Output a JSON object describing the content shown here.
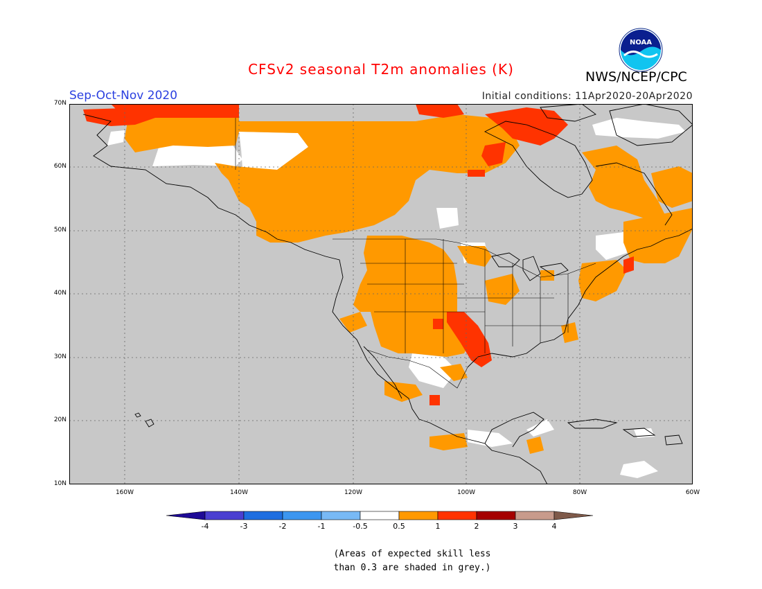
{
  "title": "CFSv2 seasonal T2m anomalies (K)",
  "agency": "NWS/NCEP/CPC",
  "logo_text": "NOAA",
  "season": "Sep-Oct-Nov 2020",
  "initial_conditions": "Initial conditions: 11Apr2020-20Apr2020",
  "latitude_labels": [
    "70N",
    "60N",
    "50N",
    "40N",
    "30N",
    "20N",
    "10N"
  ],
  "longitude_labels": [
    "160W",
    "140W",
    "120W",
    "100W",
    "80W",
    "60W"
  ],
  "colorbar": {
    "labels": [
      "-4",
      "-3",
      "-2",
      "-1",
      "-0.5",
      "0.5",
      "1",
      "2",
      "3",
      "4"
    ],
    "colors": [
      "#1e0a96",
      "#4a3fd1",
      "#1e6ee0",
      "#3c96f0",
      "#78b9f5",
      "#ffffff",
      "#ff9900",
      "#ff3300",
      "#a50000",
      "#c89b8c",
      "#7f5a4a"
    ]
  },
  "note_lines": [
    "(Areas of expected skill less",
    " than 0.3 are shaded in grey.)"
  ],
  "colors": {
    "grey_skill_mask": "#c8c8c8",
    "warm_anomaly": "#ff9900",
    "hot_anomaly": "#ff3300",
    "neutral": "#ffffff"
  }
}
